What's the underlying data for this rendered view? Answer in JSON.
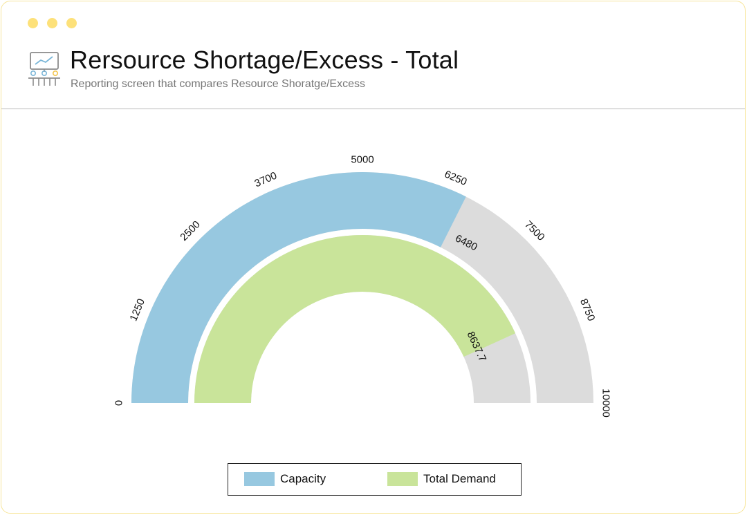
{
  "header": {
    "title": "Rersource Shortage/Excess - Total",
    "subtitle": "Reporting screen that compares Resource Shoratge/Excess",
    "icon": "presentation-board-icon"
  },
  "colors": {
    "capacity": "#97c8e0",
    "demand": "#c9e49a",
    "track": "#dcdcdc",
    "window_dots": "#fde17a"
  },
  "chart_data": {
    "type": "gauge",
    "min": 0,
    "max": 10000,
    "ticks": [
      "0",
      "1250",
      "2500",
      "3700",
      "5000",
      "6250",
      "7500",
      "8750",
      "10000"
    ],
    "series": [
      {
        "name": "Capacity",
        "value": 6480,
        "value_label": "6480"
      },
      {
        "name": "Total Demand",
        "value": 8637.7,
        "value_label": "8637.7"
      }
    ],
    "legend": {
      "position": "bottom"
    }
  }
}
